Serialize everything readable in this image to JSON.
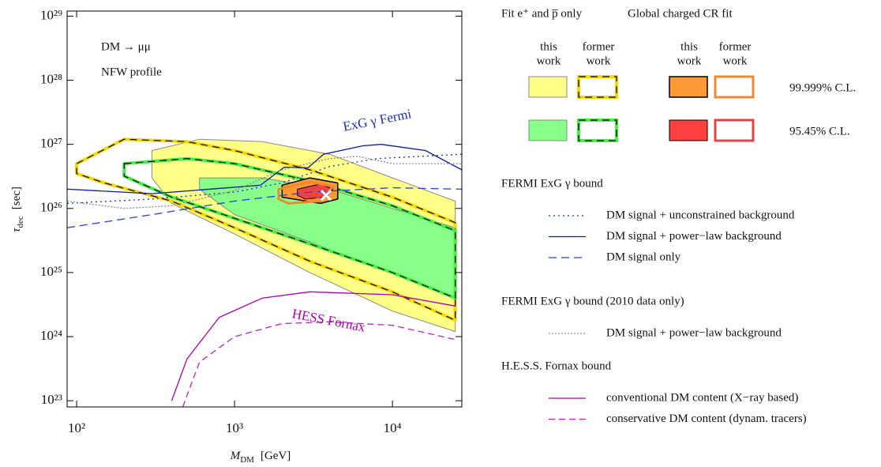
{
  "chart_data": {
    "type": "line",
    "xscale": "log",
    "yscale": "log",
    "xlim": [
      87,
      27500
    ],
    "ylim": [
      8e+22,
      1.2e+29
    ],
    "xticks": [
      {
        "value": 100,
        "label": "10²"
      },
      {
        "value": 1000,
        "label": "10³"
      },
      {
        "value": 10000,
        "label": "10⁴"
      }
    ],
    "yticks": [
      {
        "value": 1e+23,
        "label": "10²³"
      },
      {
        "value": 1e+24,
        "label": "10²⁴"
      },
      {
        "value": 1e+25,
        "label": "10²⁵"
      },
      {
        "value": 1e+26,
        "label": "10²⁶"
      },
      {
        "value": 1e+27,
        "label": "10²⁷"
      },
      {
        "value": 1e+28,
        "label": "10²⁸"
      },
      {
        "value": 1e+29,
        "label": "10²⁹"
      }
    ],
    "x_label": {
      "symbol": "M",
      "sub": "DM",
      "unit": "[GeV]"
    },
    "y_label": {
      "symbol": "τ",
      "sub": "dec",
      "unit": "[sec]"
    },
    "annotations": [
      "DM → μμ",
      "NFW profile",
      "ExG γ Fermi",
      "HESS Fornax"
    ],
    "levels": [
      "99.999% C.L.",
      "95.45% C.L."
    ],
    "contour_groups": [
      {
        "title": "Fit e⁺ and p̅ only",
        "columns": [
          {
            "head": [
              "this",
              "work"
            ],
            "levels": [
              {
                "fill": "#ffff88",
                "stroke": "#888888",
                "width": 1,
                "x": [
                  300,
                  600,
                  1500,
                  4000,
                  10000,
                  25000,
                  25000,
                  10000,
                  3000,
                  1000,
                  400,
                  300
                ],
                "y": [
                  8e+26,
                  1.2e+27,
                  1.1e+27,
                  7e+26,
                  3e+26,
                  1.3e+26,
                  1.2e+24,
                  2.5e+24,
                  1e+25,
                  4e+25,
                  1.2e+26,
                  3e+26
                ]
              },
              {
                "fill": "#88ff88",
                "stroke": "#888888",
                "width": 1,
                "x": [
                  600,
                  1500,
                  4000,
                  10000,
                  25000,
                  25000,
                  8000,
                  3000,
                  1000,
                  600
                ],
                "y": [
                  3e+26,
                  3e+26,
                  2e+26,
                  1e+26,
                  5e+25,
                  4e+24,
                  1.2e+25,
                  3e+25,
                  8e+25,
                  2e+26
                ]
              }
            ]
          },
          {
            "head": [
              "former",
              "work"
            ],
            "levels": [
              {
                "fill": "none",
                "stroke": "#f5d800",
                "width": 4,
                "dash_color": "#000000",
                "dash": "9 6",
                "x": [
                  100,
                  200,
                  500,
                  1000,
                  3000,
                  10000,
                  25000,
                  25000,
                  10000,
                  3000,
                  1000,
                  400,
                  150,
                  100
                ],
                "y": [
                  5e+26,
                  1.2e+27,
                  1.1e+27,
                  8e+26,
                  4e+26,
                  1.5e+26,
                  6e+25,
                  1.8e+24,
                  5e+24,
                  1.5e+25,
                  5e+25,
                  1.3e+26,
                  2.5e+26,
                  3.5e+26
                ]
              },
              {
                "fill": "none",
                "stroke": "#44ee44",
                "width": 4,
                "dash_color": "#000000",
                "dash": "9 6",
                "x": [
                  200,
                  500,
                  1000,
                  3000,
                  10000,
                  25000,
                  25000,
                  10000,
                  3000,
                  1000,
                  400,
                  200
                ],
                "y": [
                  5e+26,
                  6e+26,
                  5e+26,
                  2.7e+26,
                  1.1e+26,
                  4.5e+25,
                  4e+24,
                  1e+25,
                  2.8e+25,
                  7e+25,
                  1.5e+26,
                  3.2e+26
                ]
              }
            ]
          }
        ]
      },
      {
        "title": "Global charged CR fit",
        "columns": [
          {
            "head": [
              "this",
              "work"
            ],
            "levels": [
              {
                "fill": "#ff9933",
                "stroke": "#000000",
                "width": 1.5,
                "x": [
                  2000,
                  3000,
                  4500,
                  4500,
                  3500,
                  2000
                ],
                "y": [
                  2.3e+26,
                  3e+26,
                  2.5e+26,
                  1.4e+26,
                  1.2e+26,
                  1.5e+26
                ]
              },
              {
                "fill": "#ff4040",
                "stroke": "#000000",
                "width": 1,
                "x": [
                  2500,
                  3500,
                  4200,
                  3800,
                  2800,
                  2500
                ],
                "y": [
                  2e+26,
                  2.4e+26,
                  2e+26,
                  1.5e+26,
                  1.4e+26,
                  1.6e+26
                ]
              }
            ]
          },
          {
            "head": [
              "former",
              "work"
            ],
            "levels": [
              {
                "fill": "none",
                "stroke": "#ee8833",
                "width": 3,
                "x": [
                  1900,
                  3000,
                  4200,
                  3500,
                  2200,
                  1900
                ],
                "y": [
                  2e+26,
                  2.6e+26,
                  2.2e+26,
                  1.3e+26,
                  1.2e+26,
                  1.4e+26
                ]
              },
              {
                "fill": "none",
                "stroke": "#e04444",
                "width": 3,
                "x": [
                  2700,
                  3400,
                  3900,
                  3400,
                  2700
                ],
                "y": [
                  1.9e+26,
                  2.1e+26,
                  1.8e+26,
                  1.5e+26,
                  1.6e+26
                ]
              }
            ]
          }
        ]
      }
    ],
    "best_fit": {
      "x": 3800,
      "y": 1.6e+26,
      "color": "#ffffff"
    },
    "bounds": [
      {
        "title": "FERMI ExG γ bound",
        "series": [
          {
            "name": "DM signal + unconstrained background",
            "color": "#1a2eb8",
            "dash": "2 4",
            "x": [
              87,
              300,
              1000,
              2000,
              4000,
              8000,
              27500
            ],
            "y": [
              1.2e+26,
              1.4e+26,
              1.8e+26,
              2.5e+26,
              4.5e+26,
              6e+26,
              7e+26
            ]
          },
          {
            "name": "DM signal + power−law background",
            "color": "#0a1a9a",
            "dash": "none",
            "x": [
              87,
              300,
              1460,
              2060,
              2920,
              3660,
              6500,
              8500,
              16200,
              27500
            ],
            "y": [
              2e+26,
              1.7e+26,
              2.3e+26,
              4.4e+26,
              4.3e+26,
              7e+26,
              9.5e+26,
              1e+27,
              8e+26,
              4e+26
            ]
          },
          {
            "name": "DM signal only",
            "color": "#2244cc",
            "dash": "10 6",
            "x": [
              87,
              300,
              1000,
              3000,
              10000,
              27500
            ],
            "y": [
              5e+25,
              8e+25,
              1.3e+26,
              1.8e+26,
              2.1e+26,
              2e+26
            ]
          }
        ]
      },
      {
        "title": "FERMI ExG γ bound (2010 data only)",
        "series": [
          {
            "name": "DM signal + power−law background",
            "color": "#888888",
            "dash": "2 2",
            "x": [
              87,
              200,
              400,
              1000,
              2000,
              4000,
              6000,
              10000,
              27500
            ],
            "y": [
              1.3e+26,
              1e+26,
              1.1e+26,
              1.9e+26,
              4e+26,
              6e+26,
              6.5e+26,
              5e+26,
              5e+26
            ]
          }
        ]
      },
      {
        "title": "H.E.S.S. Fornax bound",
        "series": [
          {
            "name": "conventional DM content (X−ray based)",
            "color": "#aa00aa",
            "dash": "none",
            "x": [
              400,
              500,
              800,
              1500,
              3000,
              10000,
              25000
            ],
            "y": [
              1e+23,
              4.5e+23,
              2e+24,
              4e+24,
              5e+24,
              4.5e+24,
              3e+24
            ]
          },
          {
            "name": "conservative DM content (dynam. tracers)",
            "color": "#bb22bb",
            "dash": "8 5",
            "x": [
              470,
              600,
              1000,
              2000,
              4000,
              10000,
              25000
            ],
            "y": [
              8e+22,
              4e+23,
              1e+24,
              1.6e+24,
              1.7e+24,
              1.5e+24,
              9e+23
            ]
          }
        ]
      }
    ]
  }
}
